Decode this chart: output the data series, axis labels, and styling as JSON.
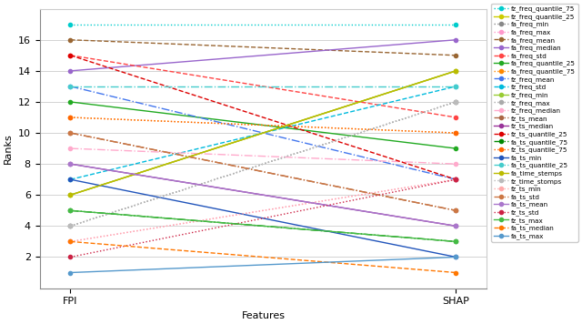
{
  "features": [
    "FPI",
    "SHAP"
  ],
  "series": [
    {
      "label": "fz_freq_quantile_75",
      "fpi": 17,
      "shap": 17,
      "color": "#00CCCC",
      "linestyle": "dotted"
    },
    {
      "label": "fz_freq_quantile_25",
      "fpi": 6,
      "shap": 14,
      "color": "#CCCC00",
      "linestyle": "solid"
    },
    {
      "label": "fa_freq_min",
      "fpi": 4,
      "shap": 12,
      "color": "#888888",
      "linestyle": "dotted"
    },
    {
      "label": "fa_freq_max",
      "fpi": 3,
      "shap": 7,
      "color": "#FF99CC",
      "linestyle": "dotted"
    },
    {
      "label": "fa_freq_mean",
      "fpi": 16,
      "shap": 15,
      "color": "#996633",
      "linestyle": "dashed"
    },
    {
      "label": "fa_freq_median",
      "fpi": 14,
      "shap": 16,
      "color": "#9966CC",
      "linestyle": "solid"
    },
    {
      "label": "fa_freq_std",
      "fpi": 15,
      "shap": 11,
      "color": "#FF4444",
      "linestyle": "dashed"
    },
    {
      "label": "fa_freq_quantile_25",
      "fpi": 12,
      "shap": 9,
      "color": "#22AA22",
      "linestyle": "solid"
    },
    {
      "label": "fa_freq_quantile_75",
      "fpi": 11,
      "shap": 10,
      "color": "#FF8800",
      "linestyle": "dotted"
    },
    {
      "label": "fz_freq_mean",
      "fpi": 13,
      "shap": 7,
      "color": "#4477EE",
      "linestyle": "dashdot"
    },
    {
      "label": "fz_freq_std",
      "fpi": 7,
      "shap": 13,
      "color": "#00BBDD",
      "linestyle": "dashed"
    },
    {
      "label": "fz_freq_min",
      "fpi": 6,
      "shap": 14,
      "color": "#99CC33",
      "linestyle": "solid"
    },
    {
      "label": "fz_freq_max",
      "fpi": 4,
      "shap": 12,
      "color": "#AAAAAA",
      "linestyle": "dotted"
    },
    {
      "label": "fz_freq_median",
      "fpi": 9,
      "shap": 8,
      "color": "#FFAACC",
      "linestyle": "dashdot"
    },
    {
      "label": "fz_ts_mean",
      "fpi": 10,
      "shap": 5,
      "color": "#AA6644",
      "linestyle": "dashdot"
    },
    {
      "label": "fz_ts_median",
      "fpi": 8,
      "shap": 4,
      "color": "#993399",
      "linestyle": "solid"
    },
    {
      "label": "fz_ts_quantile_25",
      "fpi": 15,
      "shap": 7,
      "color": "#DD0000",
      "linestyle": "dashed"
    },
    {
      "label": "fa_ts_quantile_75",
      "fpi": 5,
      "shap": 3,
      "color": "#008800",
      "linestyle": "dashdot"
    },
    {
      "label": "fz_ts_quantile_75",
      "fpi": 11,
      "shap": 10,
      "color": "#FF6600",
      "linestyle": "dotted"
    },
    {
      "label": "fa_ts_min",
      "fpi": 7,
      "shap": 2,
      "color": "#2255BB",
      "linestyle": "solid"
    },
    {
      "label": "fa_ts_quantile_25",
      "fpi": 13,
      "shap": 13,
      "color": "#44CCCC",
      "linestyle": "dashdot"
    },
    {
      "label": "fa_time_stemps",
      "fpi": 6,
      "shap": 14,
      "color": "#BBBB00",
      "linestyle": "solid"
    },
    {
      "label": "fz_time_stomps",
      "fpi": 4,
      "shap": 12,
      "color": "#BBBBBB",
      "linestyle": "dotted"
    },
    {
      "label": "fz_ts_min",
      "fpi": 3,
      "shap": 7,
      "color": "#FFAAAA",
      "linestyle": "dotted"
    },
    {
      "label": "fa_ts_std",
      "fpi": 10,
      "shap": 5,
      "color": "#CC7744",
      "linestyle": "dashdot"
    },
    {
      "label": "fa_ts_mean",
      "fpi": 8,
      "shap": 4,
      "color": "#AA77CC",
      "linestyle": "solid"
    },
    {
      "label": "fz_ts_std",
      "fpi": 2,
      "shap": 7,
      "color": "#CC2244",
      "linestyle": "dotted"
    },
    {
      "label": "fz_ts_max",
      "fpi": 5,
      "shap": 3,
      "color": "#44BB44",
      "linestyle": "solid"
    },
    {
      "label": "fa_ts_median",
      "fpi": 3,
      "shap": 1,
      "color": "#FF7700",
      "linestyle": "dashed"
    },
    {
      "label": "fa_ts_max",
      "fpi": 1,
      "shap": 2,
      "color": "#5599CC",
      "linestyle": "solid"
    }
  ],
  "xlabel": "Features",
  "ylabel": "Ranks",
  "ylim": [
    0,
    18
  ],
  "yticks": [
    2,
    4,
    6,
    8,
    10,
    12,
    14,
    16
  ],
  "background_color": "#ffffff",
  "grid_color": "#cccccc",
  "legend_fontsize": 5.2,
  "linewidth": 1.0,
  "markersize": 3.0
}
